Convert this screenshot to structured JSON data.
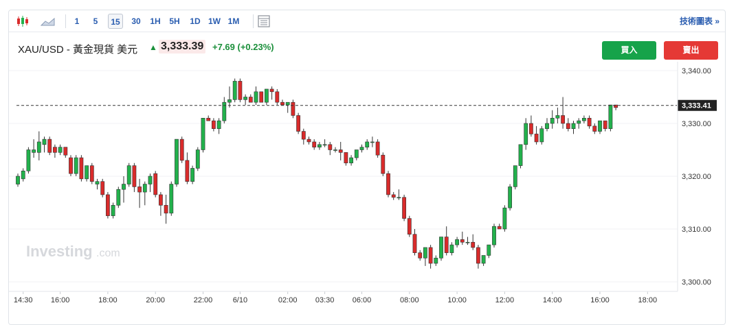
{
  "toolbar": {
    "intervals": [
      "1",
      "5",
      "15",
      "30",
      "1H",
      "5H",
      "1D",
      "1W",
      "1M"
    ],
    "active_interval": "15",
    "tech_label": "技術圖表 »"
  },
  "header": {
    "instrument": "XAU/USD - 黃金現貨 美元",
    "price": "3,333.39",
    "change": "+7.69 (+0.23%)",
    "buy_label": "買入",
    "sell_label": "賣出"
  },
  "watermark": {
    "main": "Investing",
    "suffix": ".com"
  },
  "colors": {
    "up": "#22b14c",
    "down": "#d92b2b",
    "accent": "#2a5db0"
  },
  "chart_data": {
    "type": "candlestick",
    "interval": "15",
    "current_price_label": "3,333.41",
    "current_price": 3333.41,
    "ylim": [
      3298,
      3342
    ],
    "y_ticks": [
      3300,
      3310,
      3320,
      3330,
      3340
    ],
    "y_tick_labels": [
      "3,300.00",
      "3,310.00",
      "3,320.00",
      "3,330.00",
      "3,340.00"
    ],
    "x_tick_labels": [
      "14:30",
      "16:00",
      "18:00",
      "20:00",
      "22:00",
      "6/10",
      "02:00",
      "03:30",
      "06:00",
      "08:00",
      "10:00",
      "12:00",
      "14:00",
      "16:00",
      "18:00"
    ],
    "x_tick_index": [
      1,
      8,
      17,
      26,
      35,
      42,
      51,
      58,
      65,
      74,
      83,
      92,
      101,
      110,
      119
    ],
    "ohlc": [
      [
        3318.5,
        3320.5,
        3318,
        3320
      ],
      [
        3319.5,
        3321.5,
        3319,
        3321
      ],
      [
        3321,
        3325.5,
        3320.5,
        3325
      ],
      [
        3324.5,
        3327,
        3323.5,
        3325
      ],
      [
        3324.5,
        3328.5,
        3323,
        3326.5
      ],
      [
        3326,
        3327.5,
        3324.5,
        3327
      ],
      [
        3327,
        3327.5,
        3324,
        3324.5
      ],
      [
        3325.5,
        3326,
        3323.5,
        3324.5
      ],
      [
        3324.5,
        3326,
        3324,
        3325.5
      ],
      [
        3325.5,
        3325.5,
        3323.5,
        3324
      ],
      [
        3323.5,
        3324,
        3320,
        3320.5
      ],
      [
        3320.5,
        3324,
        3320,
        3323.5
      ],
      [
        3323.5,
        3324,
        3319,
        3319.5
      ],
      [
        3319.5,
        3322,
        3319,
        3322
      ],
      [
        3322,
        3322.5,
        3318.5,
        3319
      ],
      [
        3318.5,
        3319.5,
        3317.5,
        3319
      ],
      [
        3319,
        3319.5,
        3316,
        3316.5
      ],
      [
        3316.5,
        3317,
        3312,
        3312.5
      ],
      [
        3312.5,
        3315,
        3312,
        3314.5
      ],
      [
        3314.5,
        3318,
        3314,
        3317.5
      ],
      [
        3317.5,
        3320,
        3315,
        3318.5
      ],
      [
        3318.5,
        3322.5,
        3318,
        3322
      ],
      [
        3322,
        3322.5,
        3317,
        3318
      ],
      [
        3318,
        3319.5,
        3314,
        3317
      ],
      [
        3317,
        3319,
        3314.5,
        3318.5
      ],
      [
        3318.5,
        3320.5,
        3317,
        3320
      ],
      [
        3320.5,
        3321,
        3316,
        3316.5
      ],
      [
        3316.5,
        3317,
        3312.5,
        3314.5
      ],
      [
        3314.5,
        3316.5,
        3311,
        3313
      ],
      [
        3313,
        3319,
        3312.5,
        3318.5
      ],
      [
        3318.5,
        3327,
        3318,
        3327
      ],
      [
        3327,
        3327.5,
        3322.5,
        3323
      ],
      [
        3323,
        3324.5,
        3318.5,
        3319
      ],
      [
        3319,
        3322,
        3318.5,
        3321.5
      ],
      [
        3321.5,
        3325.5,
        3321,
        3325
      ],
      [
        3325,
        3331,
        3324.5,
        3331
      ],
      [
        3331,
        3331.5,
        3330.5,
        3330.5
      ],
      [
        3330.5,
        3331,
        3328.5,
        3329
      ],
      [
        3329,
        3331,
        3328,
        3330.5
      ],
      [
        3330.5,
        3335,
        3330,
        3334
      ],
      [
        3334,
        3337,
        3333,
        3334.5
      ],
      [
        3334.5,
        3338.5,
        3334,
        3338
      ],
      [
        3338,
        3338.5,
        3334,
        3334.5
      ],
      [
        3334.5,
        3335.5,
        3333.5,
        3335
      ],
      [
        3335,
        3335.5,
        3334,
        3334
      ],
      [
        3334,
        3337,
        3333.5,
        3336
      ],
      [
        3336,
        3336,
        3334,
        3334
      ],
      [
        3334,
        3336.5,
        3333.5,
        3336.5
      ],
      [
        3336.5,
        3337,
        3334.5,
        3336
      ],
      [
        3336,
        3336.5,
        3333.5,
        3334
      ],
      [
        3334,
        3334.5,
        3333.5,
        3333.5
      ],
      [
        3333.5,
        3334,
        3332,
        3334
      ],
      [
        3334,
        3334.5,
        3331,
        3331.5
      ],
      [
        3331.5,
        3332,
        3328,
        3328.5
      ],
      [
        3328.5,
        3329,
        3326,
        3327
      ],
      [
        3327,
        3327.5,
        3326,
        3326.5
      ],
      [
        3326.5,
        3327,
        3325,
        3325.5
      ],
      [
        3325.5,
        3326.5,
        3325,
        3326
      ],
      [
        3326,
        3327,
        3325.5,
        3326
      ],
      [
        3326,
        3326.5,
        3324,
        3325
      ],
      [
        3325,
        3325.5,
        3324.5,
        3325
      ],
      [
        3325,
        3326.5,
        3323,
        3324.5
      ],
      [
        3324.5,
        3324.5,
        3322,
        3322.5
      ],
      [
        3322.5,
        3324,
        3322,
        3323.5
      ],
      [
        3323.5,
        3325,
        3323,
        3325
      ],
      [
        3325,
        3326,
        3324.5,
        3325.5
      ],
      [
        3325.5,
        3327,
        3325,
        3326.5
      ],
      [
        3326.5,
        3327.5,
        3325.5,
        3326.5
      ],
      [
        3326.5,
        3327,
        3323.5,
        3324
      ],
      [
        3324,
        3324.5,
        3320,
        3320.5
      ],
      [
        3320.5,
        3321,
        3316,
        3316.5
      ],
      [
        3316.5,
        3317,
        3315.5,
        3316
      ],
      [
        3316,
        3317.5,
        3315.5,
        3316
      ],
      [
        3316,
        3316.5,
        3311.5,
        3312
      ],
      [
        3312,
        3312.5,
        3308.5,
        3309
      ],
      [
        3309,
        3310,
        3305,
        3305.5
      ],
      [
        3305.5,
        3306,
        3304,
        3304.5
      ],
      [
        3304.5,
        3306.5,
        3303,
        3306.5
      ],
      [
        3306.5,
        3307,
        3302.5,
        3303.5
      ],
      [
        3303.5,
        3305,
        3303,
        3304.5
      ],
      [
        3304.5,
        3308.5,
        3304,
        3308.5
      ],
      [
        3308.5,
        3310.5,
        3305,
        3305.5
      ],
      [
        3305.5,
        3307.5,
        3305,
        3307
      ],
      [
        3307,
        3308.5,
        3306.5,
        3308
      ],
      [
        3308,
        3309.5,
        3307,
        3307.5
      ],
      [
        3307.5,
        3308.5,
        3307,
        3307.5
      ],
      [
        3307.5,
        3309,
        3306,
        3306.5
      ],
      [
        3306.5,
        3307,
        3302.5,
        3303.5
      ],
      [
        3303.5,
        3305,
        3303,
        3305
      ],
      [
        3305,
        3307,
        3304.5,
        3307
      ],
      [
        3307,
        3311,
        3306.5,
        3310.5
      ],
      [
        3310.5,
        3311,
        3310,
        3310
      ],
      [
        3310,
        3314.5,
        3309.5,
        3314
      ],
      [
        3314,
        3318.5,
        3313.5,
        3318
      ],
      [
        3318,
        3322,
        3317.5,
        3322
      ],
      [
        3322,
        3326,
        3321.5,
        3326
      ],
      [
        3326,
        3331,
        3325,
        3330
      ],
      [
        3330,
        3331.5,
        3327.5,
        3328
      ],
      [
        3328,
        3329.5,
        3326,
        3326.5
      ],
      [
        3326.5,
        3329.5,
        3326,
        3329
      ],
      [
        3329,
        3331,
        3328.5,
        3330
      ],
      [
        3330,
        3332.5,
        3329,
        3331
      ],
      [
        3331,
        3333,
        3330,
        3331.5
      ],
      [
        3331.5,
        3335,
        3329,
        3330
      ],
      [
        3330,
        3331,
        3328.5,
        3329
      ],
      [
        3329,
        3330.5,
        3328,
        3330
      ],
      [
        3330,
        3331,
        3329,
        3330.5
      ],
      [
        3330.5,
        3331.5,
        3330,
        3331
      ],
      [
        3331,
        3331.5,
        3329,
        3329.5
      ],
      [
        3329.5,
        3330,
        3328,
        3328.5
      ],
      [
        3328.5,
        3330.5,
        3328,
        3330.5
      ],
      [
        3330.5,
        3330.5,
        3328.5,
        3329
      ],
      [
        3329,
        3333.5,
        3328.5,
        3333.5
      ],
      [
        3333.5,
        3333.5,
        3332.5,
        3333
      ]
    ]
  }
}
